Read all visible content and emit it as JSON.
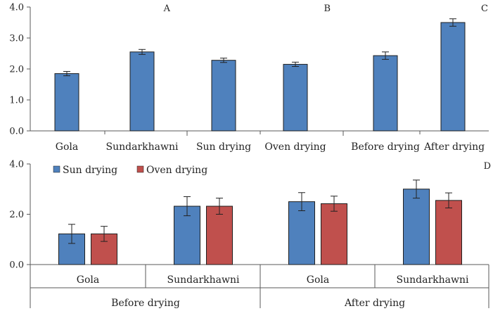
{
  "colors": {
    "sun": "#4f81bd",
    "oven": "#c0504d",
    "axis": "#595959"
  },
  "chart_data": [
    {
      "panel": "A",
      "type": "bar",
      "categories": [
        "Gola",
        "Sundarkhawni"
      ],
      "values": [
        1.85,
        2.55
      ],
      "errors": [
        0.07,
        0.08
      ],
      "ylim": [
        0,
        4.0
      ],
      "yticks": [
        "0.0",
        "1.0",
        "2.0",
        "3.0",
        "4.0"
      ],
      "grid": false
    },
    {
      "panel": "B",
      "type": "bar",
      "categories": [
        "Sun drying",
        "Oven drying"
      ],
      "values": [
        2.28,
        2.15
      ],
      "errors": [
        0.07,
        0.07
      ],
      "ylim": [
        0,
        4.0
      ],
      "grid": false
    },
    {
      "panel": "C",
      "type": "bar",
      "categories": [
        "Before drying",
        "After drying"
      ],
      "values": [
        2.43,
        3.5
      ],
      "errors": [
        0.12,
        0.12
      ],
      "ylim": [
        0,
        4.0
      ],
      "grid": false
    },
    {
      "panel": "D",
      "type": "bar",
      "groups": [
        "Before drying",
        "After drying"
      ],
      "categories": [
        "Gola",
        "Sundarkhawni",
        "Gola",
        "Sundarkhawni"
      ],
      "series": [
        {
          "name": "Sun drying",
          "values": [
            1.22,
            2.32,
            2.5,
            3.0
          ],
          "errors": [
            0.38,
            0.38,
            0.36,
            0.36
          ],
          "color_key": "sun"
        },
        {
          "name": "Oven drying",
          "values": [
            1.22,
            2.32,
            2.42,
            2.55
          ],
          "errors": [
            0.3,
            0.32,
            0.3,
            0.3
          ],
          "color_key": "oven"
        }
      ],
      "ylim": [
        0,
        4.0
      ],
      "yticks": [
        "0.0",
        "2.0",
        "4.0"
      ],
      "legend": "top-left",
      "grid": false
    }
  ]
}
